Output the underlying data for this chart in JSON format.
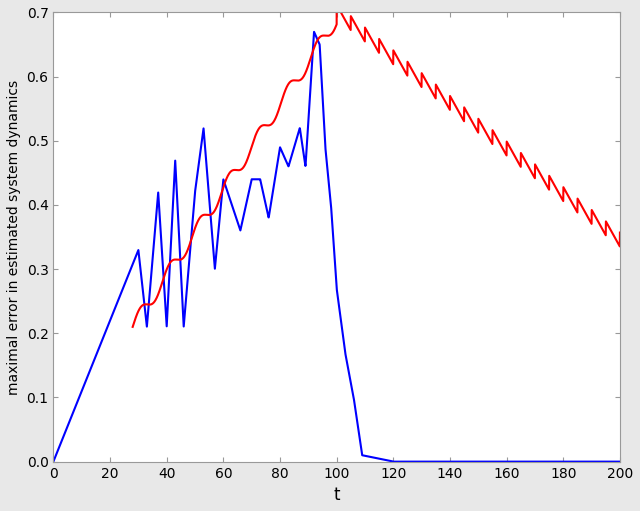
{
  "title": "",
  "xlabel": "t",
  "ylabel": "maximal error in estimated system dynamics",
  "xlim": [
    0,
    200
  ],
  "ylim": [
    0,
    0.7
  ],
  "xticks": [
    0,
    20,
    40,
    60,
    80,
    100,
    120,
    140,
    160,
    180,
    200
  ],
  "yticks": [
    0,
    0.1,
    0.2,
    0.3,
    0.4,
    0.5,
    0.6,
    0.7
  ],
  "blue_color": "#0000ff",
  "red_color": "#ff0000",
  "linewidth": 1.5,
  "bg_color": "#e8e8e8",
  "plot_bg": "#ffffff"
}
